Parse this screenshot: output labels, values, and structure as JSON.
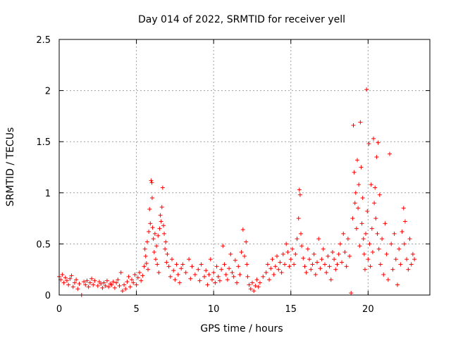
{
  "chart_data": {
    "type": "scatter",
    "title": "Day 014 of 2022, SRMTID for receiver yell",
    "xlabel": "GPS time / hours",
    "ylabel": "SRMTID / TECUs",
    "xlim": [
      0,
      24
    ],
    "ylim": [
      0,
      2.5
    ],
    "x_ticks": [
      0,
      5,
      10,
      15,
      20
    ],
    "x_tick_labels": [
      "0",
      "5",
      "10",
      "15",
      "20"
    ],
    "y_ticks": [
      0,
      0.5,
      1,
      1.5,
      2,
      2.5
    ],
    "y_tick_labels": [
      "0",
      "0.5",
      "1",
      "1.5",
      "2",
      "2.5"
    ],
    "grid": true,
    "marker": "+",
    "color": "#ff0000",
    "series": [
      {
        "name": "SRMTID",
        "points": [
          [
            0.0,
            0.18
          ],
          [
            0.1,
            0.15
          ],
          [
            0.2,
            0.2
          ],
          [
            0.3,
            0.12
          ],
          [
            0.4,
            0.17
          ],
          [
            0.5,
            0.14
          ],
          [
            0.6,
            0.1
          ],
          [
            0.7,
            0.16
          ],
          [
            0.8,
            0.19
          ],
          [
            0.9,
            0.08
          ],
          [
            1.0,
            0.12
          ],
          [
            1.1,
            0.15
          ],
          [
            1.2,
            0.06
          ],
          [
            1.3,
            0.11
          ],
          [
            1.45,
            0.0
          ],
          [
            1.6,
            0.13
          ],
          [
            1.7,
            0.1
          ],
          [
            1.8,
            0.14
          ],
          [
            1.9,
            0.08
          ],
          [
            2.0,
            0.12
          ],
          [
            2.1,
            0.16
          ],
          [
            2.2,
            0.1
          ],
          [
            2.3,
            0.14
          ],
          [
            2.5,
            0.09
          ],
          [
            2.6,
            0.13
          ],
          [
            2.7,
            0.11
          ],
          [
            2.8,
            0.07
          ],
          [
            2.9,
            0.12
          ],
          [
            3.0,
            0.09
          ],
          [
            3.1,
            0.14
          ],
          [
            3.2,
            0.08
          ],
          [
            3.3,
            0.11
          ],
          [
            3.4,
            0.1
          ],
          [
            3.5,
            0.13
          ],
          [
            3.6,
            0.07
          ],
          [
            3.7,
            0.12
          ],
          [
            3.8,
            0.15
          ],
          [
            3.9,
            0.09
          ],
          [
            4.0,
            0.22
          ],
          [
            4.1,
            0.04
          ],
          [
            4.2,
            0.1
          ],
          [
            4.3,
            0.06
          ],
          [
            4.4,
            0.13
          ],
          [
            4.5,
            0.18
          ],
          [
            4.6,
            0.08
          ],
          [
            4.7,
            0.15
          ],
          [
            4.8,
            0.12
          ],
          [
            4.9,
            0.2
          ],
          [
            5.0,
            0.1
          ],
          [
            5.1,
            0.17
          ],
          [
            5.2,
            0.22
          ],
          [
            5.3,
            0.14
          ],
          [
            5.4,
            0.19
          ],
          [
            5.5,
            0.28
          ],
          [
            5.55,
            0.45
          ],
          [
            5.6,
            0.38
          ],
          [
            5.65,
            0.31
          ],
          [
            5.7,
            0.52
          ],
          [
            5.75,
            0.25
          ],
          [
            5.8,
            0.62
          ],
          [
            5.85,
            0.84
          ],
          [
            5.9,
            0.7
          ],
          [
            5.95,
            1.12
          ],
          [
            6.0,
            1.1
          ],
          [
            6.02,
            0.95
          ],
          [
            6.05,
            0.66
          ],
          [
            6.1,
            0.55
          ],
          [
            6.15,
            0.42
          ],
          [
            6.2,
            0.6
          ],
          [
            6.25,
            0.35
          ],
          [
            6.3,
            0.48
          ],
          [
            6.35,
            0.3
          ],
          [
            6.4,
            0.58
          ],
          [
            6.45,
            0.22
          ],
          [
            6.5,
            0.65
          ],
          [
            6.55,
            0.78
          ],
          [
            6.6,
            0.72
          ],
          [
            6.65,
            0.86
          ],
          [
            6.7,
            1.05
          ],
          [
            6.75,
            0.68
          ],
          [
            6.8,
            0.6
          ],
          [
            6.85,
            0.45
          ],
          [
            6.9,
            0.52
          ],
          [
            6.95,
            0.32
          ],
          [
            7.0,
            0.4
          ],
          [
            7.1,
            0.28
          ],
          [
            7.2,
            0.18
          ],
          [
            7.3,
            0.35
          ],
          [
            7.4,
            0.24
          ],
          [
            7.5,
            0.15
          ],
          [
            7.6,
            0.3
          ],
          [
            7.7,
            0.2
          ],
          [
            7.8,
            0.12
          ],
          [
            7.9,
            0.26
          ],
          [
            8.0,
            0.3
          ],
          [
            8.2,
            0.22
          ],
          [
            8.4,
            0.35
          ],
          [
            8.5,
            0.16
          ],
          [
            8.6,
            0.28
          ],
          [
            8.8,
            0.2
          ],
          [
            9.0,
            0.25
          ],
          [
            9.1,
            0.14
          ],
          [
            9.2,
            0.3
          ],
          [
            9.4,
            0.18
          ],
          [
            9.5,
            0.24
          ],
          [
            9.6,
            0.1
          ],
          [
            9.7,
            0.2
          ],
          [
            9.8,
            0.35
          ],
          [
            9.9,
            0.15
          ],
          [
            10.0,
            0.22
          ],
          [
            10.1,
            0.12
          ],
          [
            10.2,
            0.28
          ],
          [
            10.3,
            0.18
          ],
          [
            10.4,
            0.14
          ],
          [
            10.5,
            0.25
          ],
          [
            10.6,
            0.48
          ],
          [
            10.7,
            0.3
          ],
          [
            10.8,
            0.2
          ],
          [
            10.9,
            0.15
          ],
          [
            11.0,
            0.26
          ],
          [
            11.1,
            0.4
          ],
          [
            11.2,
            0.22
          ],
          [
            11.3,
            0.18
          ],
          [
            11.4,
            0.34
          ],
          [
            11.5,
            0.12
          ],
          [
            11.6,
            0.28
          ],
          [
            11.7,
            0.2
          ],
          [
            11.8,
            0.42
          ],
          [
            11.9,
            0.64
          ],
          [
            12.0,
            0.38
          ],
          [
            12.1,
            0.52
          ],
          [
            12.15,
            0.3
          ],
          [
            12.2,
            0.18
          ],
          [
            12.3,
            0.1
          ],
          [
            12.4,
            0.06
          ],
          [
            12.5,
            0.12
          ],
          [
            12.6,
            0.04
          ],
          [
            12.7,
            0.09
          ],
          [
            12.8,
            0.15
          ],
          [
            12.9,
            0.08
          ],
          [
            13.0,
            0.12
          ],
          [
            13.2,
            0.18
          ],
          [
            13.4,
            0.22
          ],
          [
            13.5,
            0.3
          ],
          [
            13.6,
            0.15
          ],
          [
            13.7,
            0.26
          ],
          [
            13.8,
            0.35
          ],
          [
            13.9,
            0.2
          ],
          [
            14.0,
            0.28
          ],
          [
            14.1,
            0.38
          ],
          [
            14.2,
            0.25
          ],
          [
            14.3,
            0.32
          ],
          [
            14.4,
            0.22
          ],
          [
            14.5,
            0.4
          ],
          [
            14.6,
            0.3
          ],
          [
            14.7,
            0.5
          ],
          [
            14.8,
            0.42
          ],
          [
            14.9,
            0.28
          ],
          [
            15.0,
            0.35
          ],
          [
            15.1,
            0.45
          ],
          [
            15.2,
            0.3
          ],
          [
            15.3,
            0.4
          ],
          [
            15.4,
            0.55
          ],
          [
            15.5,
            0.75
          ],
          [
            15.55,
            1.03
          ],
          [
            15.6,
            0.98
          ],
          [
            15.65,
            0.6
          ],
          [
            15.7,
            0.48
          ],
          [
            15.8,
            0.36
          ],
          [
            15.9,
            0.28
          ],
          [
            16.0,
            0.22
          ],
          [
            16.1,
            0.45
          ],
          [
            16.2,
            0.35
          ],
          [
            16.3,
            0.25
          ],
          [
            16.4,
            0.3
          ],
          [
            16.5,
            0.4
          ],
          [
            16.6,
            0.2
          ],
          [
            16.7,
            0.32
          ],
          [
            16.8,
            0.55
          ],
          [
            16.9,
            0.26
          ],
          [
            17.0,
            0.35
          ],
          [
            17.1,
            0.45
          ],
          [
            17.2,
            0.3
          ],
          [
            17.3,
            0.22
          ],
          [
            17.4,
            0.38
          ],
          [
            17.5,
            0.28
          ],
          [
            17.6,
            0.15
          ],
          [
            17.7,
            0.42
          ],
          [
            17.8,
            0.35
          ],
          [
            17.9,
            0.25
          ],
          [
            18.0,
            0.3
          ],
          [
            18.1,
            0.4
          ],
          [
            18.2,
            0.5
          ],
          [
            18.3,
            0.32
          ],
          [
            18.4,
            0.6
          ],
          [
            18.5,
            0.42
          ],
          [
            18.6,
            0.28
          ],
          [
            18.7,
            0.55
          ],
          [
            18.8,
            0.38
          ],
          [
            18.9,
            0.02
          ],
          [
            19.0,
            0.75
          ],
          [
            19.05,
            1.66
          ],
          [
            19.1,
            1.2
          ],
          [
            19.15,
            0.9
          ],
          [
            19.2,
            1.0
          ],
          [
            19.25,
            0.65
          ],
          [
            19.3,
            1.32
          ],
          [
            19.35,
            0.85
          ],
          [
            19.4,
            1.08
          ],
          [
            19.45,
            0.48
          ],
          [
            19.5,
            1.69
          ],
          [
            19.55,
            1.25
          ],
          [
            19.6,
            0.7
          ],
          [
            19.65,
            0.95
          ],
          [
            19.7,
            0.55
          ],
          [
            19.75,
            0.4
          ],
          [
            19.8,
            0.25
          ],
          [
            19.85,
            0.6
          ],
          [
            19.9,
            2.01
          ],
          [
            19.95,
            0.82
          ],
          [
            20.0,
            0.35
          ],
          [
            20.05,
            1.48
          ],
          [
            20.1,
            0.5
          ],
          [
            20.15,
            0.28
          ],
          [
            20.2,
            1.08
          ],
          [
            20.25,
            0.65
          ],
          [
            20.3,
            0.42
          ],
          [
            20.35,
            1.53
          ],
          [
            20.4,
            0.9
          ],
          [
            20.45,
            1.05
          ],
          [
            20.5,
            0.75
          ],
          [
            20.55,
            1.35
          ],
          [
            20.6,
            0.6
          ],
          [
            20.65,
            1.49
          ],
          [
            20.7,
            0.45
          ],
          [
            20.75,
            0.98
          ],
          [
            20.8,
            0.3
          ],
          [
            20.9,
            0.55
          ],
          [
            21.0,
            0.2
          ],
          [
            21.1,
            0.7
          ],
          [
            21.2,
            0.4
          ],
          [
            21.3,
            0.15
          ],
          [
            21.4,
            1.38
          ],
          [
            21.5,
            0.5
          ],
          [
            21.6,
            0.25
          ],
          [
            21.7,
            0.6
          ],
          [
            21.8,
            0.35
          ],
          [
            21.9,
            0.1
          ],
          [
            22.0,
            0.45
          ],
          [
            22.1,
            0.3
          ],
          [
            22.2,
            0.62
          ],
          [
            22.3,
            0.85
          ],
          [
            22.35,
            0.5
          ],
          [
            22.4,
            0.72
          ],
          [
            22.5,
            0.35
          ],
          [
            22.6,
            0.25
          ],
          [
            22.7,
            0.55
          ],
          [
            22.8,
            0.3
          ],
          [
            22.9,
            0.4
          ],
          [
            23.0,
            0.35
          ]
        ]
      }
    ]
  }
}
